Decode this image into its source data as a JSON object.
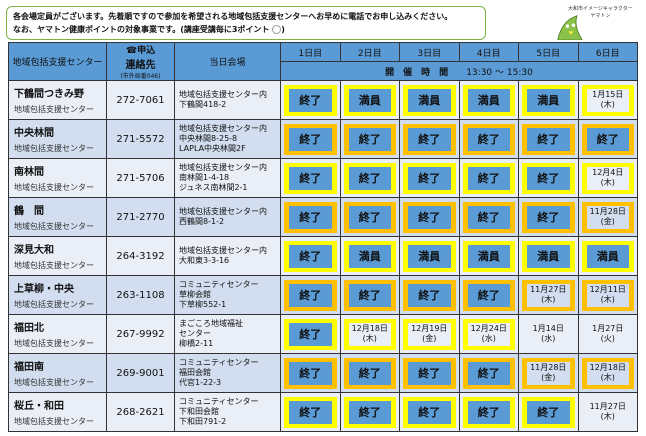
{
  "notice": {
    "line1": "各会場定員がございます。先着順ですので参加を希望される地域包括支援センターへお早めに電話でお申し込みください。",
    "line2": "なお、ヤマトン健康ポイントの対象事業です。(講座受講毎に3ポイント",
    "line2_end": ")"
  },
  "mascot": {
    "label1": "大和市イメージキャラクター",
    "label2": "ヤマトン"
  },
  "header": {
    "center": "地域包括支援センター",
    "contact1": "☎申込",
    "contact2": "連絡先",
    "contact3": "(市外局番046)",
    "venue": "当日会場",
    "days": [
      "1日目",
      "2日目",
      "3日目",
      "4日目",
      "5日目",
      "6日目"
    ],
    "time_label": "開　催　時　間",
    "time": "13:30 ～ 15:30"
  },
  "colors": {
    "header": "#5b9bd5",
    "yellow": "#ffff00",
    "orange": "#ffc000",
    "status": "#5b9bd5"
  },
  "rows": [
    {
      "name": "下鶴間つきみ野",
      "sub": "地域包括支援センター",
      "phone": "272-7061",
      "venue": [
        "地域包括支援センター内",
        "下鶴間418-2"
      ],
      "days": [
        {
          "t": "終了",
          "k": "s"
        },
        {
          "t": "満員",
          "k": "s"
        },
        {
          "t": "満員",
          "k": "s"
        },
        {
          "t": "満員",
          "k": "s"
        },
        {
          "t": "満員",
          "k": "s"
        },
        {
          "t": "1月15日",
          "w": "(木)",
          "k": "d"
        }
      ]
    },
    {
      "name": "中央林間",
      "sub": "地域包括支援センター",
      "phone": "271-5572",
      "venue": [
        "地域包括支援センター内",
        "中央林間8-25-8",
        "LAPLA中央林間2F"
      ],
      "days": [
        {
          "t": "終了",
          "k": "s"
        },
        {
          "t": "終了",
          "k": "s"
        },
        {
          "t": "終了",
          "k": "s"
        },
        {
          "t": "終了",
          "k": "s"
        },
        {
          "t": "終了",
          "k": "s"
        },
        {
          "t": "終了",
          "k": "s"
        }
      ]
    },
    {
      "name": "南林間",
      "sub": "地域包括支援センター",
      "phone": "271-5706",
      "venue": [
        "地域包括支援センター内",
        "南林間1-4-18",
        "ジュネス南林間2-1"
      ],
      "days": [
        {
          "t": "終了",
          "k": "s"
        },
        {
          "t": "終了",
          "k": "s"
        },
        {
          "t": "終了",
          "k": "s"
        },
        {
          "t": "終了",
          "k": "s"
        },
        {
          "t": "終了",
          "k": "s"
        },
        {
          "t": "12月4日",
          "w": "(木)",
          "k": "d"
        }
      ]
    },
    {
      "name": "鶴　間",
      "sub": "地域包括支援センター",
      "phone": "271-2770",
      "venue": [
        "地域包括支援センター内",
        "西鶴間8-1-2"
      ],
      "days": [
        {
          "t": "終了",
          "k": "s"
        },
        {
          "t": "終了",
          "k": "s"
        },
        {
          "t": "終了",
          "k": "s"
        },
        {
          "t": "終了",
          "k": "s"
        },
        {
          "t": "終了",
          "k": "s"
        },
        {
          "t": "11月28日",
          "w": "(金)",
          "k": "d"
        }
      ]
    },
    {
      "name": "深見大和",
      "sub": "地域包括支援センター",
      "phone": "264-3192",
      "venue": [
        "地域包括支援センター内",
        "大和東3-3-16"
      ],
      "days": [
        {
          "t": "終了",
          "k": "s"
        },
        {
          "t": "満員",
          "k": "s"
        },
        {
          "t": "満員",
          "k": "s"
        },
        {
          "t": "満員",
          "k": "s"
        },
        {
          "t": "満員",
          "k": "s"
        },
        {
          "t": "満員",
          "k": "s"
        }
      ]
    },
    {
      "name": "上草柳・中央",
      "sub": "地域包括支援センター",
      "phone": "263-1108",
      "venue": [
        "コミュニティセンター",
        "草柳会館",
        "下草柳552-1"
      ],
      "days": [
        {
          "t": "終了",
          "k": "s"
        },
        {
          "t": "終了",
          "k": "s"
        },
        {
          "t": "終了",
          "k": "s"
        },
        {
          "t": "終了",
          "k": "s"
        },
        {
          "t": "11月27日",
          "w": "(木)",
          "k": "d"
        },
        {
          "t": "12月11日",
          "w": "(木)",
          "k": "d"
        }
      ]
    },
    {
      "name": "福田北",
      "sub": "地域包括支援センター",
      "phone": "267-9992",
      "venue": [
        "まごころ地域福祉",
        "センター",
        "柳橋2-11"
      ],
      "days": [
        {
          "t": "終了",
          "k": "s"
        },
        {
          "t": "12月18日",
          "w": "(木)",
          "k": "d"
        },
        {
          "t": "12月19日",
          "w": "(金)",
          "k": "d"
        },
        {
          "t": "12月24日",
          "w": "(水)",
          "k": "d"
        },
        {
          "t": "1月14日",
          "w": "(水)",
          "k": "p"
        },
        {
          "t": "1月27日",
          "w": "(火)",
          "k": "p"
        }
      ]
    },
    {
      "name": "福田南",
      "sub": "地域包括支援センター",
      "phone": "269-9001",
      "venue": [
        "コミュニティセンター",
        "福田会館",
        "代官1-22-3"
      ],
      "days": [
        {
          "t": "終了",
          "k": "s"
        },
        {
          "t": "終了",
          "k": "s"
        },
        {
          "t": "終了",
          "k": "s"
        },
        {
          "t": "終了",
          "k": "s"
        },
        {
          "t": "11月28日",
          "w": "(金)",
          "k": "d"
        },
        {
          "t": "12月18日",
          "w": "(木)",
          "k": "d"
        }
      ]
    },
    {
      "name": "桜丘・和田",
      "sub": "地域包括支援センター",
      "phone": "268-2621",
      "venue": [
        "コミュニティセンター",
        "下和田会館",
        "下和田791-2"
      ],
      "days": [
        {
          "t": "終了",
          "k": "s"
        },
        {
          "t": "終了",
          "k": "s"
        },
        {
          "t": "終了",
          "k": "s"
        },
        {
          "t": "終了",
          "k": "s"
        },
        {
          "t": "終了",
          "k": "s"
        },
        {
          "t": "11月27日",
          "w": "(木)",
          "k": "p"
        }
      ]
    }
  ]
}
